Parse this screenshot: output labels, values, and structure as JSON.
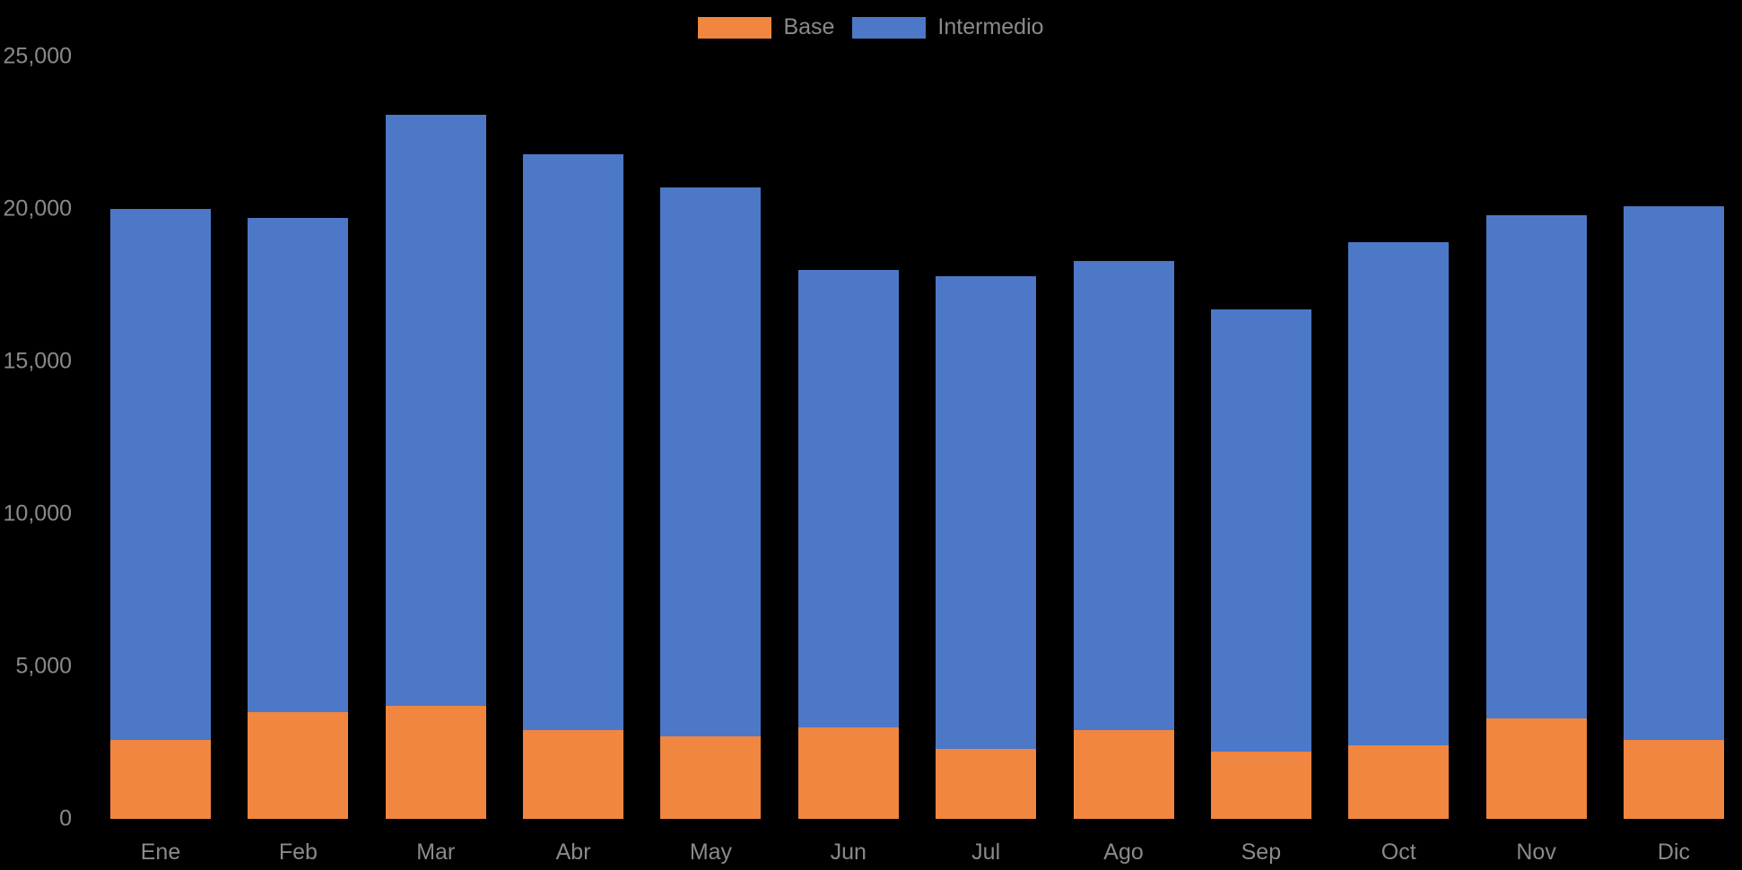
{
  "chart_data": {
    "type": "bar",
    "stacked": true,
    "title": "",
    "xlabel": "",
    "ylabel": "",
    "categories": [
      "Ene",
      "Feb",
      "Mar",
      "Abr",
      "May",
      "Jun",
      "Jul",
      "Ago",
      "Sep",
      "Oct",
      "Nov",
      "Dic"
    ],
    "series": [
      {
        "name": "Base",
        "color": "#F0863F",
        "values": [
          2600,
          3500,
          3700,
          2900,
          2700,
          3000,
          2300,
          2900,
          2200,
          2400,
          3300,
          2600
        ]
      },
      {
        "name": "Intermedio",
        "color": "#4D78C7",
        "values": [
          17400,
          16200,
          19400,
          18900,
          18000,
          15000,
          15500,
          15400,
          14500,
          16500,
          16500,
          17500
        ]
      }
    ],
    "stack_totals": [
      20000,
      19700,
      23100,
      21800,
      20700,
      18000,
      17800,
      18300,
      16700,
      18900,
      19800,
      20100
    ],
    "ylim": [
      0,
      25000
    ],
    "ytick_step": 5000,
    "ytick_values": [
      0,
      5000,
      10000,
      15000,
      20000,
      25000
    ],
    "ytick_labels": [
      "0",
      "5,000",
      "10,000",
      "15,000",
      "20,000",
      "25,000"
    ],
    "grid": false,
    "legend_position": "top-center",
    "background_color": "#000000",
    "label_color": "#8a8a8a"
  }
}
